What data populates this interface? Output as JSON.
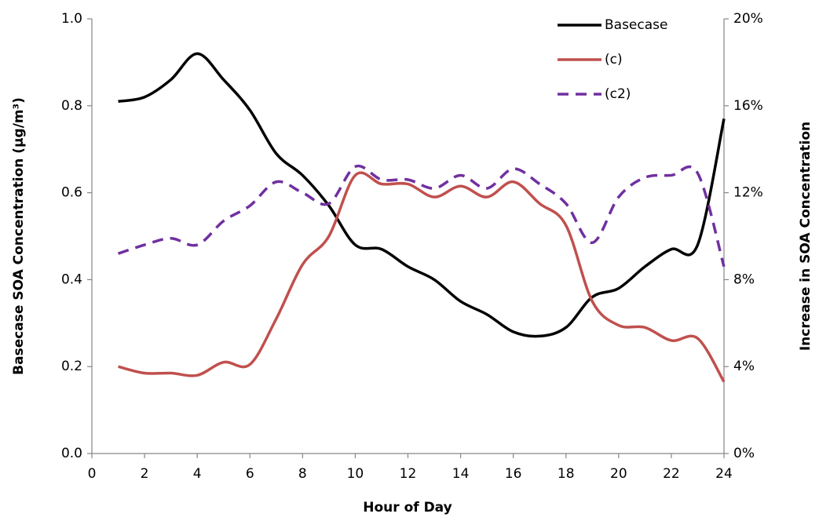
{
  "chart_data": {
    "type": "line",
    "x_label": "Hour of Day",
    "y_label": "Basecase SOA Concentration (µg/m³)",
    "y2_label": "Increase in SOA Concentration",
    "x": [
      1,
      2,
      3,
      4,
      5,
      6,
      7,
      8,
      9,
      10,
      11,
      12,
      13,
      14,
      15,
      16,
      17,
      18,
      19,
      20,
      21,
      22,
      23,
      24
    ],
    "xlim": [
      0,
      24
    ],
    "xticks": [
      0,
      2,
      4,
      6,
      8,
      10,
      12,
      14,
      16,
      18,
      20,
      22,
      24
    ],
    "ylim": [
      0,
      1
    ],
    "yticks": [
      {
        "value": 0,
        "label": "0.0"
      },
      0.2,
      0.4,
      0.6,
      0.8,
      {
        "value": 1,
        "label": "1.0"
      }
    ],
    "y2lim": [
      0,
      20
    ],
    "y2ticks": [
      {
        "value": 0,
        "label": "0%"
      },
      {
        "value": 4,
        "label": "4%"
      },
      {
        "value": 8,
        "label": "8%"
      },
      {
        "value": 12,
        "label": "12%"
      },
      {
        "value": 16,
        "label": "16%"
      },
      {
        "value": 20,
        "label": "20%"
      }
    ],
    "grid": false,
    "legend": "upper right",
    "smooth": true,
    "series": [
      {
        "name": "Basecase",
        "color": "#000000",
        "dash": "solid",
        "values": [
          0.81,
          0.82,
          0.86,
          0.92,
          0.86,
          0.79,
          0.69,
          0.64,
          0.57,
          0.48,
          0.47,
          0.43,
          0.4,
          0.35,
          0.32,
          0.28,
          0.27,
          0.29,
          0.36,
          0.38,
          0.43,
          0.47,
          0.48,
          0.77
        ]
      },
      {
        "name": "(c)",
        "color": "#c0504d",
        "dash": "solid",
        "axis": "y2",
        "values": [
          4.0,
          3.7,
          3.7,
          3.6,
          4.2,
          4.1,
          6.2,
          8.7,
          10.0,
          12.8,
          12.4,
          12.4,
          11.8,
          12.3,
          11.8,
          12.5,
          11.5,
          10.5,
          7.0,
          5.9,
          5.8,
          5.2,
          5.3,
          3.3
        ]
      },
      {
        "name": "(c2)",
        "color": "#7030a0",
        "dash": "dashed",
        "axis": "y2",
        "values": [
          9.2,
          9.6,
          9.9,
          9.6,
          10.7,
          11.4,
          12.5,
          12.0,
          11.5,
          13.2,
          12.6,
          12.6,
          12.2,
          12.8,
          12.2,
          13.1,
          12.4,
          11.5,
          9.7,
          11.8,
          12.7,
          12.8,
          12.9,
          8.6
        ]
      }
    ]
  }
}
